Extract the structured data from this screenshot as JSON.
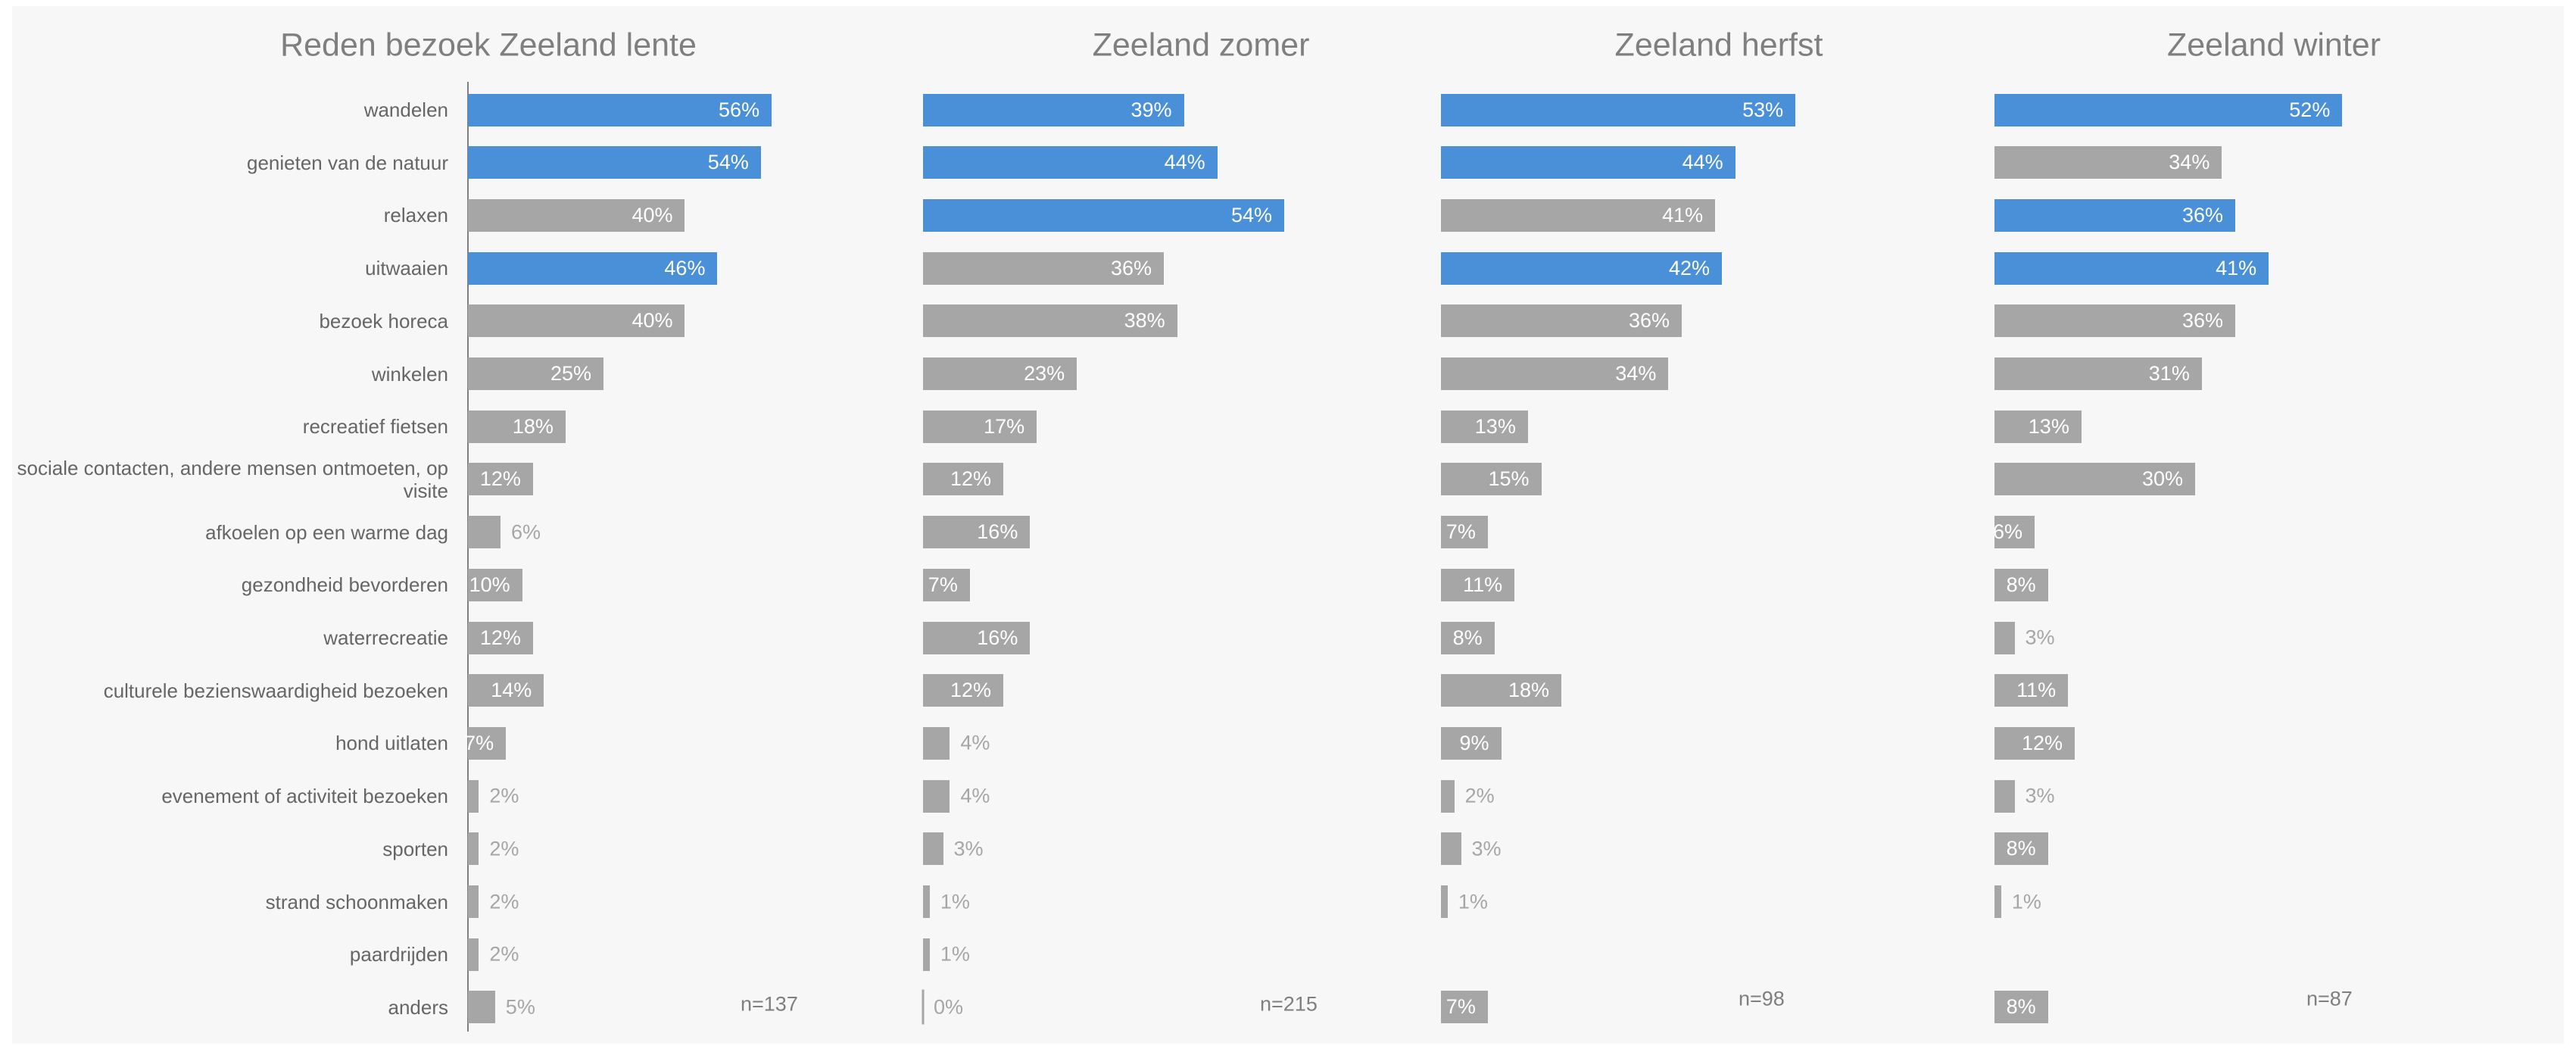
{
  "chart_data": [
    {
      "type": "bar",
      "orientation": "horizontal",
      "title": "Reden bezoek Zeeland lente",
      "note": "n=137",
      "categories": [
        "wandelen",
        "genieten van de natuur",
        "relaxen",
        "uitwaaien",
        "bezoek horeca",
        "winkelen",
        "recreatief fietsen",
        "sociale contacten, andere mensen ontmoeten, op visite",
        "afkoelen op een warme dag",
        "gezondheid bevorderen",
        "waterrecreatie",
        "culturele bezienswaardigheid bezoeken",
        "hond uitlaten",
        "evenement of activiteit bezoeken",
        "sporten",
        "strand schoonmaken",
        "paardrijden",
        "anders"
      ],
      "values": [
        56,
        54,
        40,
        46,
        40,
        25,
        18,
        12,
        6,
        10,
        12,
        14,
        7,
        2,
        2,
        2,
        2,
        5
      ],
      "value_labels": [
        "56%",
        "54%",
        "40%",
        "46%",
        "40%",
        "25%",
        "18%",
        "12%",
        "6%",
        "10%",
        "12%",
        "14%",
        "7%",
        "2%",
        "2%",
        "2%",
        "2%",
        "5%"
      ],
      "colors": [
        "#4a90d9",
        "#4a90d9",
        "#a6a6a6",
        "#4a90d9",
        "#a6a6a6",
        "#a6a6a6",
        "#a6a6a6",
        "#a6a6a6",
        "#a6a6a6",
        "#a6a6a6",
        "#a6a6a6",
        "#a6a6a6",
        "#a6a6a6",
        "#a6a6a6",
        "#a6a6a6",
        "#a6a6a6",
        "#a6a6a6",
        "#a6a6a6"
      ],
      "xlim": [
        0,
        74
      ]
    },
    {
      "type": "bar",
      "orientation": "horizontal",
      "title": "Zeeland zomer",
      "note": "n=215",
      "values": [
        39,
        44,
        54,
        36,
        38,
        23,
        17,
        12,
        16,
        7,
        16,
        12,
        4,
        4,
        3,
        1,
        1,
        0
      ],
      "value_labels": [
        "39%",
        "44%",
        "54%",
        "36%",
        "38%",
        "23%",
        "17%",
        "12%",
        "16%",
        "7%",
        "16%",
        "12%",
        "4%",
        "4%",
        "3%",
        "1%",
        "1%",
        "0%"
      ],
      "colors": [
        "#4a90d9",
        "#4a90d9",
        "#4a90d9",
        "#a6a6a6",
        "#a6a6a6",
        "#a6a6a6",
        "#a6a6a6",
        "#a6a6a6",
        "#a6a6a6",
        "#a6a6a6",
        "#a6a6a6",
        "#a6a6a6",
        "#a6a6a6",
        "#a6a6a6",
        "#a6a6a6",
        "#a6a6a6",
        "#a6a6a6",
        "#a6a6a6"
      ],
      "xlim": [
        0,
        60
      ]
    },
    {
      "type": "bar",
      "orientation": "horizontal",
      "title": "Zeeland herfst",
      "note": "n=98",
      "values": [
        53,
        44,
        41,
        42,
        36,
        34,
        13,
        15,
        7,
        11,
        8,
        18,
        9,
        2,
        3,
        1,
        null,
        7
      ],
      "value_labels": [
        "53%",
        "44%",
        "41%",
        "42%",
        "36%",
        "34%",
        "13%",
        "15%",
        "7%",
        "11%",
        "8%",
        "18%",
        "9%",
        "2%",
        "3%",
        "1%",
        null,
        "7%"
      ],
      "colors": [
        "#4a90d9",
        "#4a90d9",
        "#a6a6a6",
        "#4a90d9",
        "#a6a6a6",
        "#a6a6a6",
        "#a6a6a6",
        "#a6a6a6",
        "#a6a6a6",
        "#a6a6a6",
        "#a6a6a6",
        "#a6a6a6",
        "#a6a6a6",
        "#a6a6a6",
        "#a6a6a6",
        "#a6a6a6",
        null,
        "#a6a6a6"
      ],
      "xlim": [
        0,
        60
      ]
    },
    {
      "type": "bar",
      "orientation": "horizontal",
      "title": "Zeeland winter",
      "note": "n=87",
      "values": [
        52,
        34,
        36,
        41,
        36,
        31,
        13,
        30,
        6,
        8,
        3,
        11,
        12,
        3,
        8,
        1,
        null,
        8
      ],
      "value_labels": [
        "52%",
        "34%",
        "36%",
        "41%",
        "36%",
        "31%",
        "13%",
        "30%",
        "6%",
        "8%",
        "3%",
        "11%",
        "12%",
        "3%",
        "8%",
        "1%",
        null,
        "8%"
      ],
      "colors": [
        "#4a90d9",
        "#a6a6a6",
        "#4a90d9",
        "#4a90d9",
        "#a6a6a6",
        "#a6a6a6",
        "#a6a6a6",
        "#a6a6a6",
        "#a6a6a6",
        "#a6a6a6",
        "#a6a6a6",
        "#a6a6a6",
        "#a6a6a6",
        "#a6a6a6",
        "#a6a6a6",
        "#a6a6a6",
        null,
        "#a6a6a6"
      ],
      "xlim": [
        0,
        60
      ]
    }
  ]
}
